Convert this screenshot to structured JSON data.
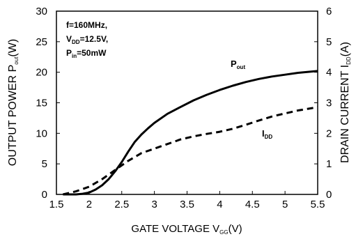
{
  "chart_data": {
    "type": "line",
    "xlabel": {
      "main": "GATE VOLTAGE V",
      "sub": "GG",
      "tail": "(V)"
    },
    "ylabel_left": {
      "main": "OUTPUT POWER P",
      "sub": "out",
      "tail": "(W)"
    },
    "ylabel_right": {
      "main": "DRAIN CURRENT I",
      "sub": "DD",
      "tail": "(A)"
    },
    "xlim": [
      1.5,
      5.5
    ],
    "ylim_left": [
      0,
      30
    ],
    "ylim_right": [
      0,
      6
    ],
    "x_ticks": [
      "1.5",
      "2",
      "2.5",
      "3",
      "3.5",
      "4",
      "4.5",
      "5",
      "5.5"
    ],
    "y_left_ticks": [
      "0",
      "5",
      "10",
      "15",
      "20",
      "25",
      "30"
    ],
    "y_right_ticks": [
      "0",
      "1",
      "2",
      "3",
      "4",
      "5",
      "6"
    ],
    "conditions": [
      {
        "main": "f=160MHz,",
        "sub": "",
        "tail": ""
      },
      {
        "main": "V",
        "sub": "DD",
        "tail": "=12.5V,"
      },
      {
        "main": "P",
        "sub": "in",
        "tail": "=50mW"
      }
    ],
    "series": [
      {
        "label": {
          "main": "P",
          "sub": "out"
        },
        "axis": "left",
        "style": "solid",
        "x": [
          1.6,
          1.7,
          1.8,
          1.9,
          2.0,
          2.1,
          2.2,
          2.3,
          2.4,
          2.5,
          2.6,
          2.7,
          2.8,
          2.9,
          3.0,
          3.2,
          3.4,
          3.6,
          3.8,
          4.0,
          4.2,
          4.4,
          4.6,
          4.8,
          5.0,
          5.2,
          5.4,
          5.5
        ],
        "y": [
          0.0,
          0.0,
          0.0,
          0.1,
          0.3,
          0.8,
          1.5,
          2.5,
          3.8,
          5.3,
          7.0,
          8.6,
          9.8,
          10.8,
          11.7,
          13.2,
          14.3,
          15.4,
          16.3,
          17.1,
          17.8,
          18.4,
          18.9,
          19.3,
          19.6,
          19.9,
          20.1,
          20.2
        ]
      },
      {
        "label": {
          "main": "I",
          "sub": "DD"
        },
        "axis": "right",
        "style": "dashed",
        "x": [
          1.6,
          1.8,
          2.0,
          2.2,
          2.4,
          2.6,
          2.8,
          3.0,
          3.2,
          3.4,
          3.6,
          3.8,
          4.0,
          4.2,
          4.4,
          4.6,
          4.8,
          5.0,
          5.2,
          5.4,
          5.5
        ],
        "y": [
          0.0,
          0.1,
          0.25,
          0.5,
          0.8,
          1.1,
          1.35,
          1.5,
          1.65,
          1.8,
          1.9,
          1.98,
          2.05,
          2.15,
          2.28,
          2.42,
          2.55,
          2.65,
          2.75,
          2.82,
          2.86
        ]
      }
    ]
  }
}
